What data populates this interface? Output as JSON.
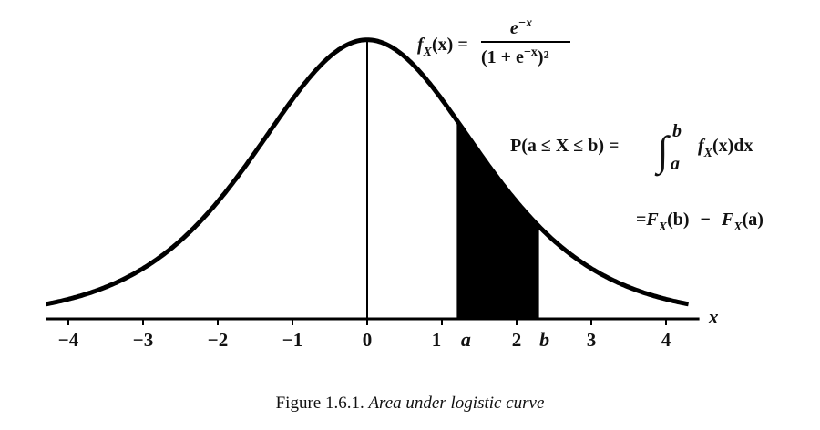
{
  "chart_data": {
    "type": "area",
    "function": "logistic density f(x) = e^-x / (1 + e^-x)^2",
    "xlim": [
      -4.3,
      4.3
    ],
    "ylim": [
      0,
      0.25
    ],
    "x_ticks": [
      -4,
      -3,
      -2,
      -1,
      0,
      1,
      2,
      3,
      4
    ],
    "tick_labels": [
      "−4",
      "−3",
      "−2",
      "−1",
      "0",
      "1",
      "2",
      "3",
      "4"
    ],
    "axis_label": "x",
    "shaded_interval": {
      "a": 1.2,
      "b": 2.3,
      "a_label": "a",
      "b_label": "b"
    },
    "annotations": {
      "density": {
        "lhs_f": "f",
        "lhs_sub": "X",
        "lhs_arg": "(x) =",
        "numerator": "e",
        "numerator_exp": "−x",
        "denominator": "(1 + e",
        "denominator_exp": "−x",
        "denominator_tail": ")²"
      },
      "probability": {
        "lhs": "P(a ≤ X ≤ b) =",
        "integral": "∫",
        "upper": "b",
        "lower": "a",
        "integrand_f": "f",
        "integrand_sub": "X",
        "integrand_tail": "(x)dx"
      },
      "cdf": {
        "eq": "=",
        "F1": "F",
        "sub1": "X",
        "arg1": "(b)",
        "minus": "−",
        "F2": "F",
        "sub2": "X",
        "arg2": "(a)"
      }
    }
  },
  "caption": {
    "number": "Figure 1.6.1.",
    "text": "Area under logistic curve"
  }
}
